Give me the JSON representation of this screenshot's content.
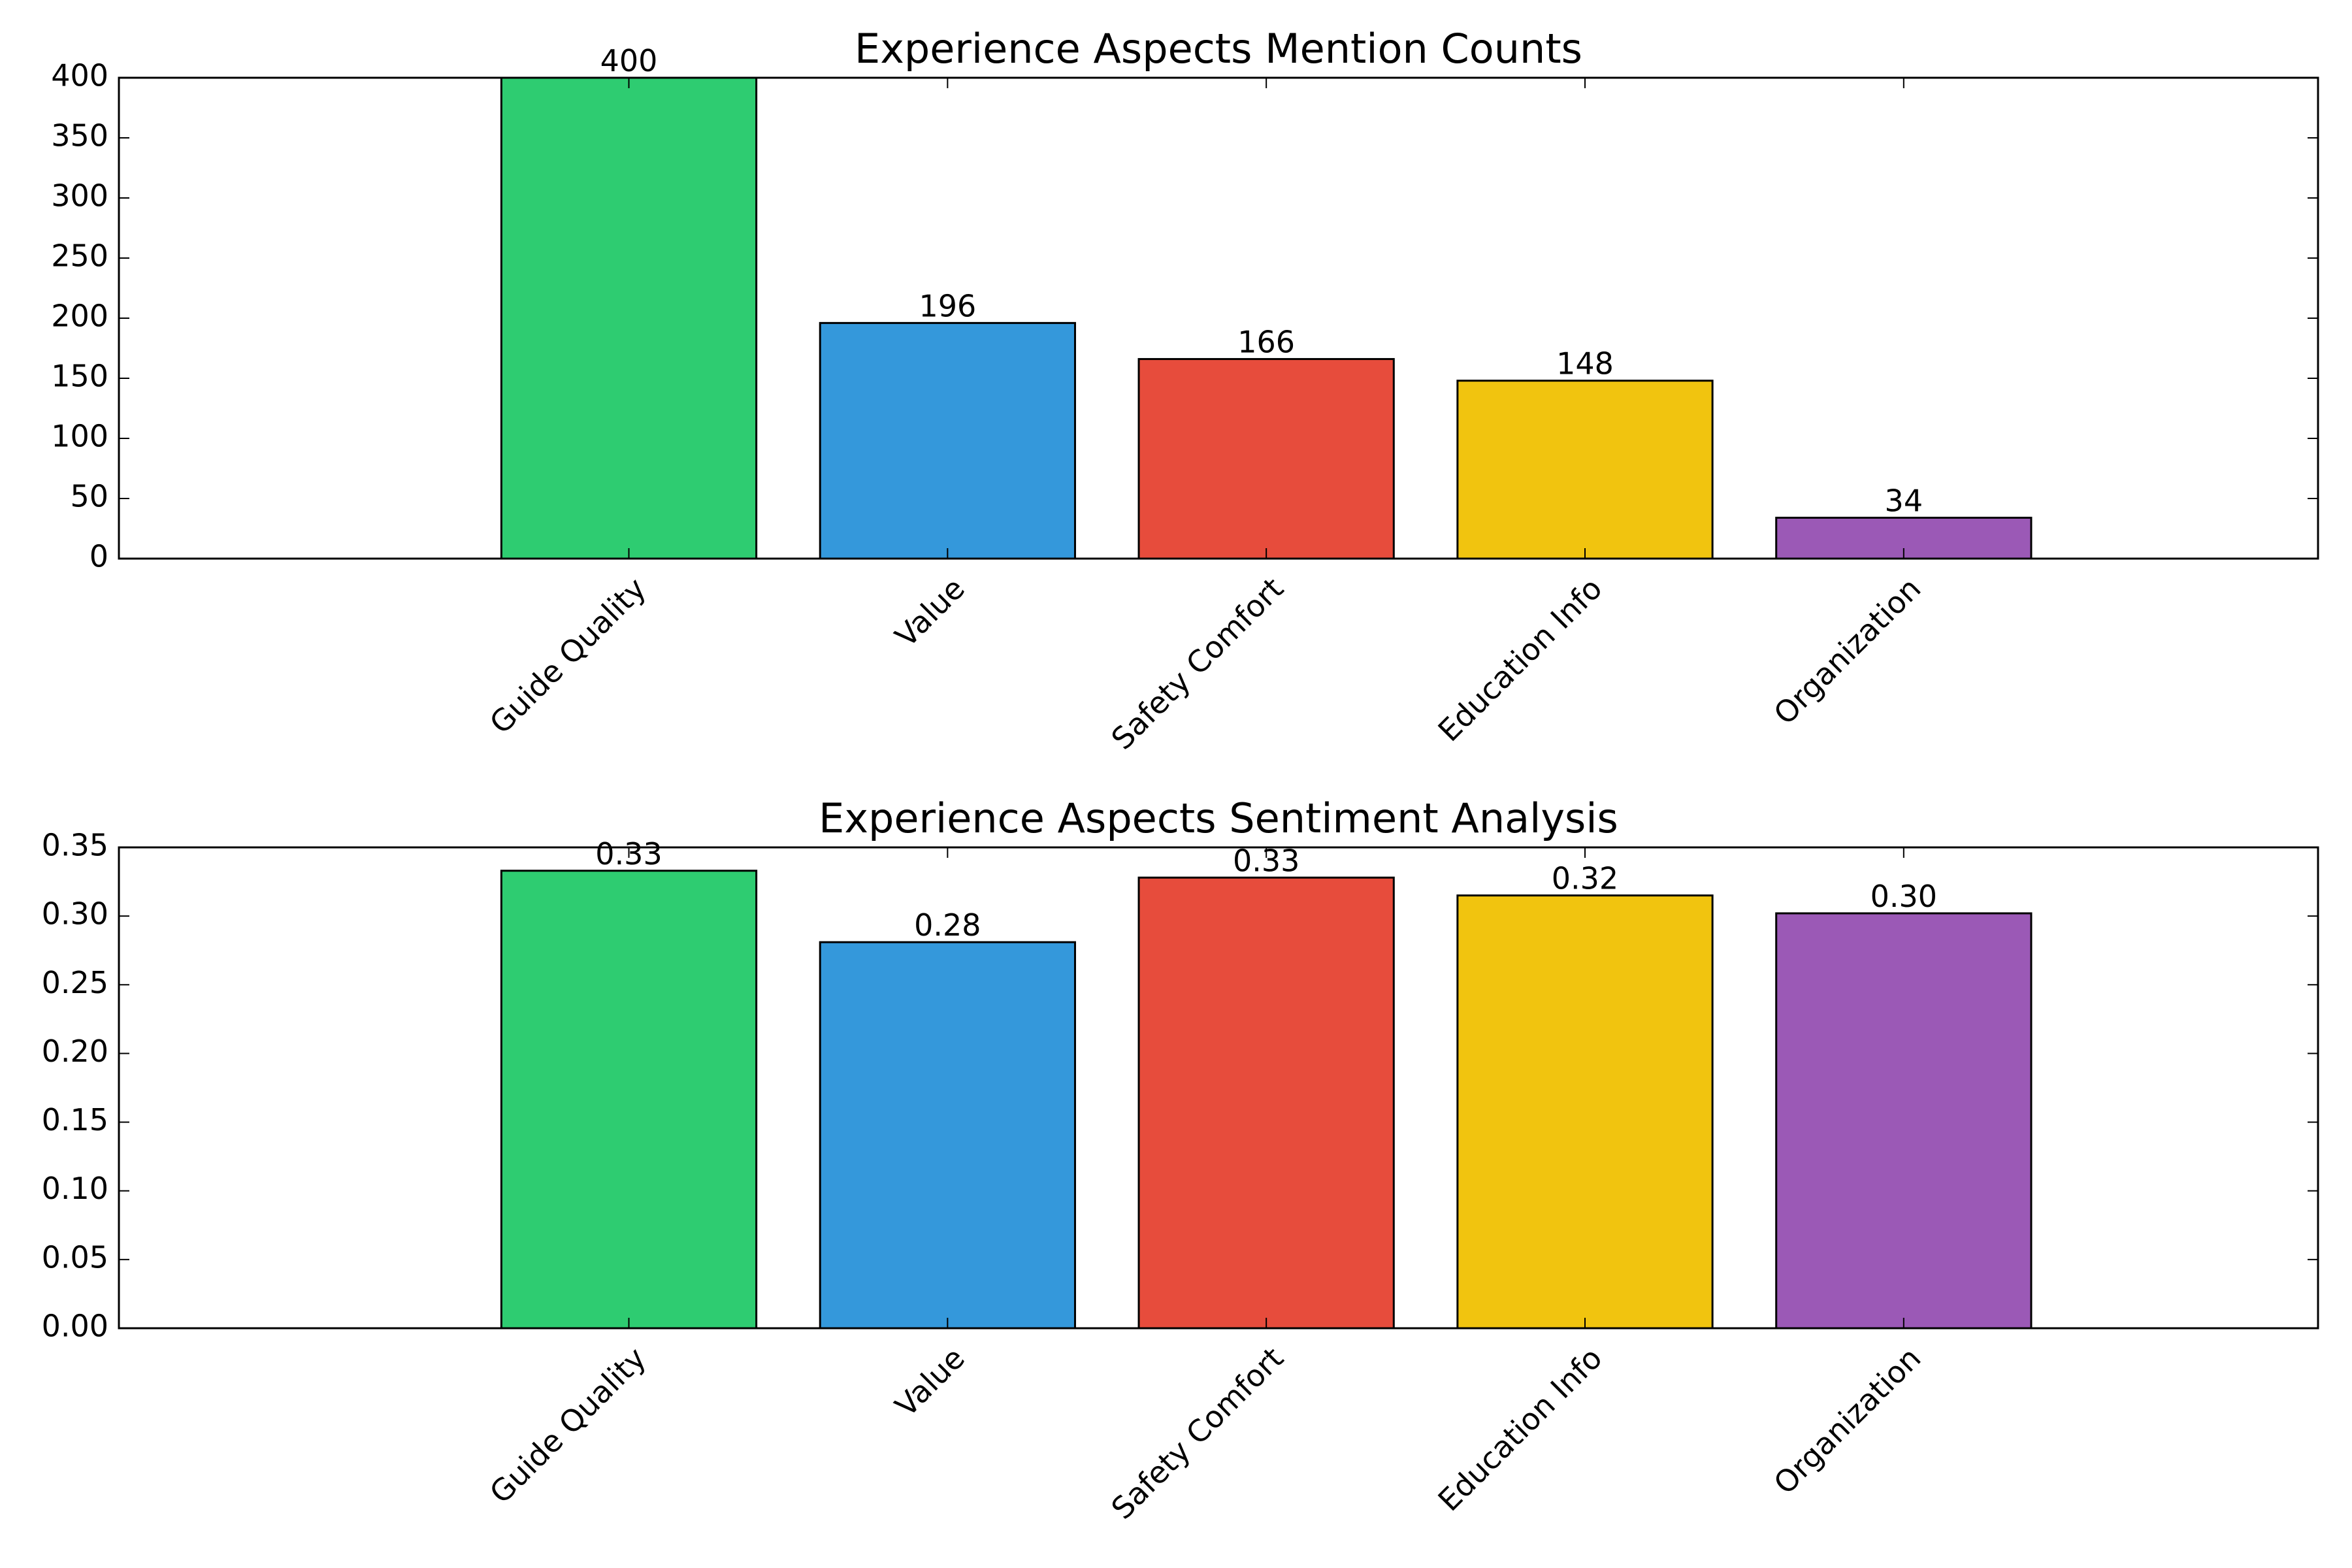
{
  "chart_data": [
    {
      "type": "bar",
      "title": "Experience Aspects Mention Counts",
      "xlabel": "",
      "ylabel": "",
      "categories": [
        "Guide Quality",
        "Value",
        "Safety Comfort",
        "Education Info",
        "Organization"
      ],
      "values": [
        400,
        196,
        166,
        148,
        34
      ],
      "value_labels": [
        "400",
        "196",
        "166",
        "148",
        "34"
      ],
      "colors": [
        "#2ecc71",
        "#3498db",
        "#e74c3c",
        "#f1c40f",
        "#9b59b6"
      ],
      "ylim": [
        0,
        400
      ],
      "yticks": [
        0,
        50,
        100,
        150,
        200,
        250,
        300,
        350,
        400
      ],
      "ytick_labels": [
        "0",
        "50",
        "100",
        "150",
        "200",
        "250",
        "300",
        "350",
        "400"
      ],
      "grid": false,
      "legend": "none"
    },
    {
      "type": "bar",
      "title": "Experience Aspects Sentiment Analysis",
      "xlabel": "",
      "ylabel": "",
      "categories": [
        "Guide Quality",
        "Value",
        "Safety Comfort",
        "Education Info",
        "Organization"
      ],
      "values": [
        0.333,
        0.281,
        0.328,
        0.315,
        0.302
      ],
      "value_labels": [
        "0.33",
        "0.28",
        "0.33",
        "0.32",
        "0.30"
      ],
      "colors": [
        "#2ecc71",
        "#3498db",
        "#e74c3c",
        "#f1c40f",
        "#9b59b6"
      ],
      "ylim": [
        0,
        0.35
      ],
      "yticks": [
        0,
        0.05,
        0.1,
        0.15,
        0.2,
        0.25,
        0.3,
        0.35
      ],
      "ytick_labels": [
        "0.00",
        "0.05",
        "0.10",
        "0.15",
        "0.20",
        "0.25",
        "0.30",
        "0.35"
      ],
      "grid": false,
      "legend": "none"
    }
  ]
}
